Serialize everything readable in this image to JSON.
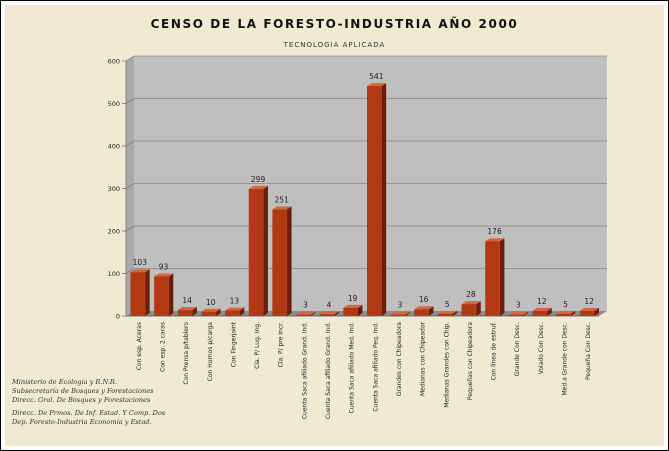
{
  "chart_data": {
    "type": "bar",
    "title": "CENSO DE LA FORESTO-INDUSTRIA AÑO 2000",
    "subtitle": "TECNOLOGIA APLICADA",
    "xlabel": "",
    "ylabel": "",
    "ylim": [
      0,
      600
    ],
    "yticks": [
      0,
      100,
      200,
      300,
      400,
      500,
      600
    ],
    "grid": true,
    "legend": "none",
    "categories": [
      "Con esp. Aceras",
      "Con esp. 2 caras",
      "Con Prensa p/tablero",
      "Con Hornos p/carga",
      "Con Fingerjoint",
      "Cía. P/ Lug. Ing.",
      "Cía. P/ pre Incr.",
      "Cuenta Saca afiliado Grand. Ind.",
      "Cuenta Saca afiliado Grand. Ind.",
      "Cuenta Saca afiliado Med. Ind.",
      "Cuenta Saca afiliado Peq. Ind.",
      "Grandes con Chipeadora",
      "Medianas con Chipeador",
      "Medianas Grandes con Chip.",
      "Pequeñas con Chipeadora",
      "Con línea de estruf.",
      "Grande Con Desc.",
      "Volado Con Desc.",
      "Med.a Grande con Desc.",
      "Pequeña Con Desc."
    ],
    "values": [
      103,
      93,
      14,
      10,
      13,
      299,
      251,
      3,
      4,
      19,
      541,
      3,
      16,
      5,
      28,
      176,
      3,
      12,
      5,
      12
    ],
    "value_labels": [
      "103",
      "93",
      "14",
      "10",
      "13",
      "299",
      "251",
      "3",
      "4",
      "19",
      "541",
      "3",
      "16",
      "5",
      "28",
      "176",
      "3",
      "12",
      "5",
      "12"
    ],
    "colors": {
      "bar_front": "#b13a14",
      "bar_side": "#6b1d07",
      "bar_top": "#d4673e",
      "plot_back": "#bfbfbf",
      "plot_floor": "#8c8c8c",
      "plot_wall": "#a9a9a9",
      "panel": "#f1e9d2"
    }
  },
  "footnote": [
    "Ministerio de Ecología y R.N.R.",
    "Subsecretaría de Bosques y Forestaciones",
    "Direcc. Gral. De Bosques y Forestaciones",
    "Direcc. De Prmos. De Inf. Estad. Y Comp. Dos",
    "Dep. Foresto-Industria Economía y Estad."
  ]
}
